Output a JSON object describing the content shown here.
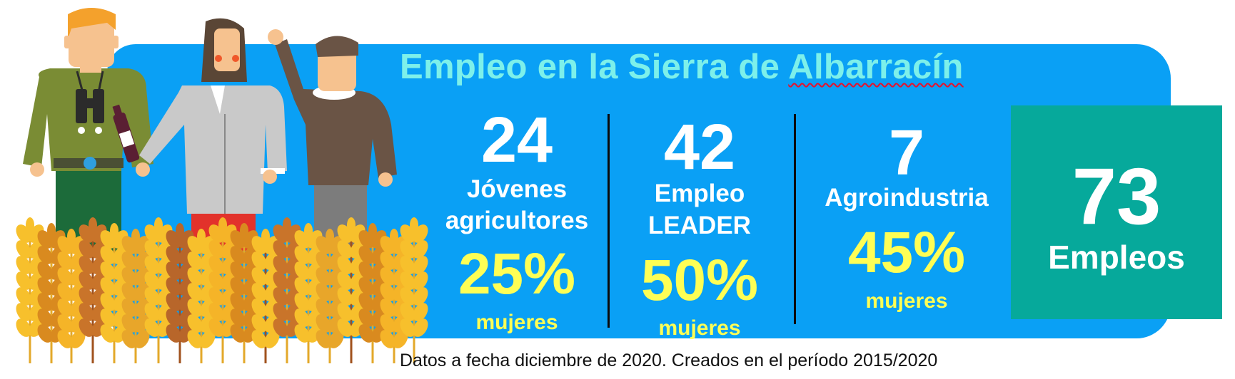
{
  "title": {
    "prefix": "Empleo en la Sierra de ",
    "highlight": "Albarracín"
  },
  "stats": [
    {
      "number": "24",
      "label_line1": "Jóvenes",
      "label_line2": "agricultores",
      "percent": "25%",
      "percent_label": "mujeres"
    },
    {
      "number": "42",
      "label_line1": "Empleo",
      "label_line2": "LEADER",
      "percent": "50%",
      "percent_label": "mujeres"
    },
    {
      "number": "7",
      "label_line1": "Agroindustria",
      "percent": "45%",
      "percent_label": "mujeres"
    }
  ],
  "total": {
    "number": "73",
    "label": "Empleos"
  },
  "footnote": "Datos a fecha diciembre de 2020. Creados en el período 2015/2020",
  "colors": {
    "banner": "#0aa0f5",
    "title": "#7df0ea",
    "highlight": "#fefe55",
    "total_box": "#06a99b"
  },
  "illustration": {
    "icons": [
      "farmer-binoculars-figure",
      "woman-wine-figure",
      "man-waving-figure",
      "wheat-field"
    ]
  }
}
